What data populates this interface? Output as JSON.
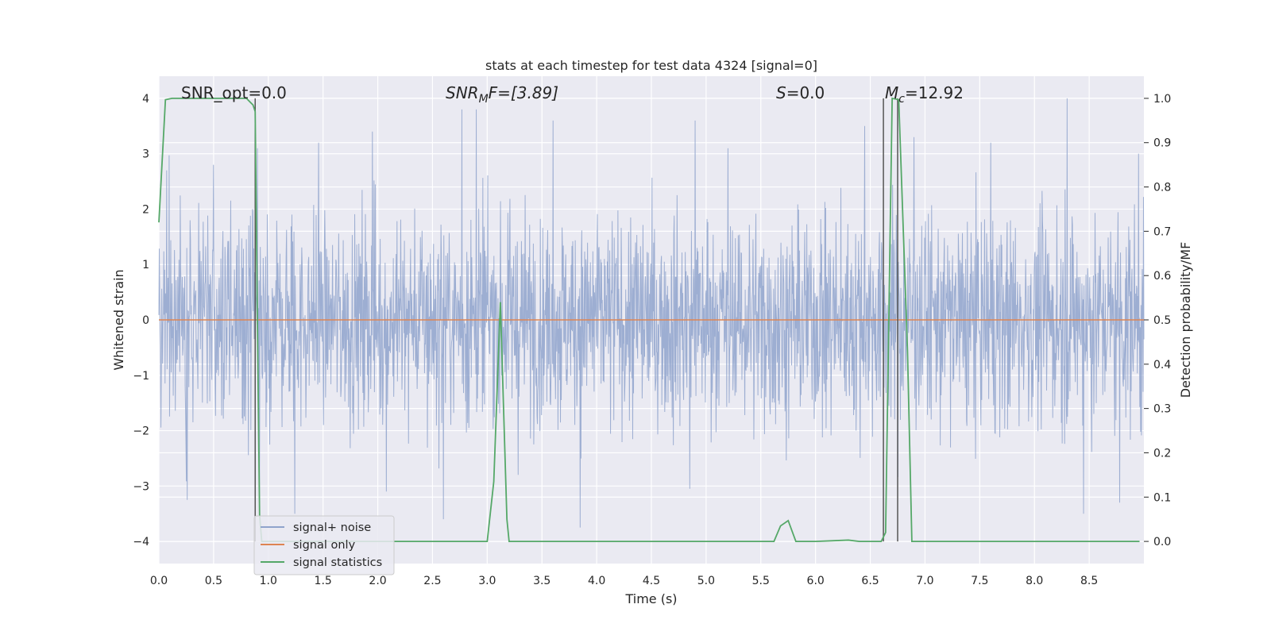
{
  "chart_data": {
    "type": "line",
    "title": "stats at each timestep for test data 4324 [signal=0]",
    "xlabel": "Time (s)",
    "ylabel": "Whitened strain",
    "y2label": "Detection probability/MF",
    "xlim": [
      0.0,
      9.0
    ],
    "ylim": [
      -4.4,
      4.4
    ],
    "y2lim": [
      -0.05,
      1.05
    ],
    "x_ticks": [
      "0.0",
      "0.5",
      "1.0",
      "1.5",
      "2.0",
      "2.5",
      "3.0",
      "3.5",
      "4.0",
      "4.5",
      "5.0",
      "5.5",
      "6.0",
      "6.5",
      "7.0",
      "7.5",
      "8.0",
      "8.5"
    ],
    "y_ticks": [
      "4",
      "3",
      "2",
      "1",
      "0",
      "−1",
      "−2",
      "−3",
      "−4"
    ],
    "y2_ticks": [
      "1.0",
      "0.9",
      "0.8",
      "0.7",
      "0.6",
      "0.5",
      "0.4",
      "0.3",
      "0.2",
      "0.1",
      "0.0"
    ],
    "grid": true,
    "legend_position": "lower-left",
    "annotations": {
      "snr_opt": "SNR_opt=0.0",
      "snr_mf_main": "SNR",
      "snr_mf_sub": "M",
      "snr_mf_tail": "F=[3.89]",
      "s_main": "S",
      "s_tail": "=0.0",
      "mc_main": "M",
      "mc_sub": "c",
      "mc_tail": "=12.92"
    },
    "vertical_markers": [
      0.88,
      6.62,
      6.75
    ],
    "series": [
      {
        "name": "signal+ noise",
        "color": "#8fa3cc",
        "noise_rms": 0.95,
        "x_range": [
          0.0,
          9.0
        ],
        "peaks": [
          {
            "x": 0.07,
            "y": 2.7
          },
          {
            "x": 0.26,
            "y": -3.25
          },
          {
            "x": 0.5,
            "y": 2.8
          },
          {
            "x": 0.9,
            "y": 3.1
          },
          {
            "x": 0.92,
            "y": -3.3
          },
          {
            "x": 1.24,
            "y": -3.5
          },
          {
            "x": 1.46,
            "y": 3.2
          },
          {
            "x": 1.95,
            "y": 3.4
          },
          {
            "x": 2.08,
            "y": -3.1
          },
          {
            "x": 2.77,
            "y": 3.8
          },
          {
            "x": 2.9,
            "y": 3.8
          },
          {
            "x": 2.6,
            "y": -3.6
          },
          {
            "x": 3.6,
            "y": 3.6
          },
          {
            "x": 3.85,
            "y": -3.75
          },
          {
            "x": 4.9,
            "y": 3.6
          },
          {
            "x": 4.85,
            "y": -3.05
          },
          {
            "x": 5.2,
            "y": 3.1
          },
          {
            "x": 6.45,
            "y": 3.5
          },
          {
            "x": 6.9,
            "y": 3.3
          },
          {
            "x": 7.6,
            "y": 3.2
          },
          {
            "x": 8.3,
            "y": 4.0
          },
          {
            "x": 8.45,
            "y": -3.5
          },
          {
            "x": 8.78,
            "y": -3.3
          },
          {
            "x": 8.95,
            "y": 3.0
          }
        ]
      },
      {
        "name": "signal only",
        "color": "#dd8452",
        "x": [
          0.0,
          9.0
        ],
        "y": [
          0.0,
          0.0
        ]
      },
      {
        "name": "signal statistics",
        "color": "#55a868",
        "axis": "right",
        "x": [
          0.0,
          0.06,
          0.12,
          0.2,
          0.4,
          0.6,
          0.8,
          0.86,
          0.88,
          0.9,
          0.92,
          0.94,
          1.0,
          2.0,
          2.95,
          3.0,
          3.06,
          3.12,
          3.18,
          3.2,
          4.0,
          5.0,
          5.62,
          5.68,
          5.75,
          5.82,
          6.0,
          6.3,
          6.4,
          6.6,
          6.64,
          6.7,
          6.76,
          6.84,
          6.88,
          7.0,
          8.0,
          8.96
        ],
        "y": [
          0.72,
          0.997,
          1.0,
          1.0,
          1.0,
          1.0,
          1.0,
          0.985,
          0.97,
          0.5,
          0.06,
          0.0,
          0.0,
          0.0,
          0.0,
          0.0,
          0.135,
          0.54,
          0.05,
          0.0,
          0.0,
          0.0,
          0.0,
          0.035,
          0.047,
          0.0,
          0.0,
          0.003,
          0.0,
          0.0,
          0.02,
          1.0,
          0.997,
          0.43,
          0.0,
          0.0,
          0.0,
          0.0
        ]
      }
    ]
  }
}
